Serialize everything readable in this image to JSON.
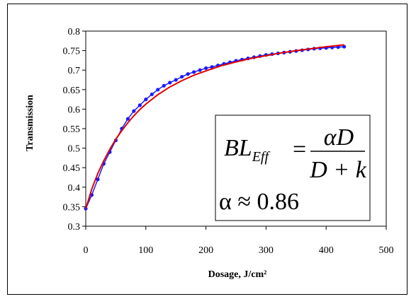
{
  "chart_data": {
    "type": "scatter",
    "title": "",
    "xlabel": "Dosage, J/cm²",
    "ylabel": "Transmission",
    "xlim": [
      0,
      500
    ],
    "ylim": [
      0.3,
      0.8
    ],
    "xticks": [
      "0",
      "100",
      "200",
      "300",
      "400",
      "500"
    ],
    "yticks": [
      "0.3",
      "0.35",
      "0.4",
      "0.45",
      "0.5",
      "0.55",
      "0.6",
      "0.65",
      "0.7",
      "0.75",
      "0.8"
    ],
    "grid": false,
    "series": [
      {
        "kind": "measured",
        "color": "#1a1aff",
        "marker": "dot",
        "x": [
          0,
          10,
          20,
          30,
          40,
          50,
          60,
          70,
          80,
          90,
          100,
          110,
          120,
          130,
          140,
          150,
          160,
          170,
          180,
          190,
          200,
          210,
          220,
          230,
          240,
          250,
          260,
          270,
          280,
          290,
          300,
          310,
          320,
          330,
          340,
          350,
          360,
          370,
          380,
          390,
          400,
          410,
          420,
          430
        ],
        "y": [
          0.345,
          0.38,
          0.42,
          0.46,
          0.49,
          0.52,
          0.55,
          0.575,
          0.595,
          0.61,
          0.625,
          0.638,
          0.65,
          0.66,
          0.668,
          0.675,
          0.683,
          0.69,
          0.695,
          0.7,
          0.705,
          0.708,
          0.712,
          0.716,
          0.72,
          0.724,
          0.727,
          0.73,
          0.733,
          0.736,
          0.739,
          0.741,
          0.743,
          0.745,
          0.747,
          0.749,
          0.751,
          0.753,
          0.755,
          0.756,
          0.757,
          0.758,
          0.759,
          0.76
        ]
      },
      {
        "kind": "fit",
        "color": "#e00000",
        "marker": "line",
        "x": [
          0,
          10,
          20,
          30,
          40,
          50,
          60,
          70,
          80,
          90,
          100,
          120,
          140,
          160,
          180,
          200,
          225,
          250,
          275,
          300,
          325,
          350,
          375,
          400,
          430
        ],
        "y": [
          0.345,
          0.395,
          0.435,
          0.468,
          0.497,
          0.523,
          0.545,
          0.565,
          0.583,
          0.599,
          0.613,
          0.637,
          0.657,
          0.673,
          0.687,
          0.698,
          0.711,
          0.721,
          0.73,
          0.737,
          0.744,
          0.75,
          0.755,
          0.76,
          0.765
        ]
      }
    ],
    "annotation": {
      "lhs_base": "BL",
      "lhs_sub": "Eff",
      "equals": "=",
      "numerator": "αD",
      "denominator": "D + k",
      "alpha_line": "α ≈ 0.86"
    }
  }
}
